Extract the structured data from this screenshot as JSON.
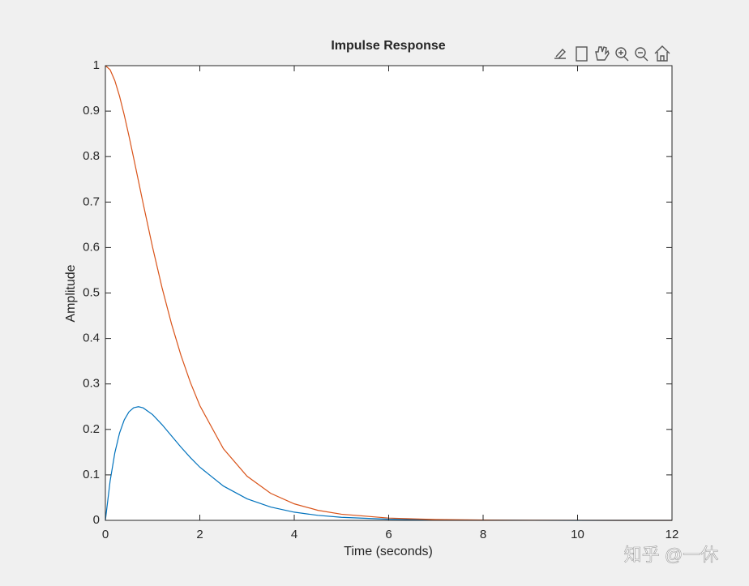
{
  "chart_data": {
    "type": "line",
    "title": "Impulse Response",
    "xlabel": "Time (seconds)",
    "ylabel": "Amplitude",
    "x": [
      0,
      0.1,
      0.2,
      0.3,
      0.4,
      0.5,
      0.6,
      0.7,
      0.8,
      1,
      1.2,
      1.4,
      1.6,
      1.8,
      2,
      2.5,
      3,
      3.5,
      4,
      4.5,
      5,
      6,
      7,
      8,
      9,
      10,
      11,
      12
    ],
    "series": [
      {
        "color": "#0072bd",
        "values": [
          0,
          0.0861,
          0.1484,
          0.192,
          0.221,
          0.2387,
          0.2476,
          0.25,
          0.2474,
          0.2325,
          0.2105,
          0.1858,
          0.1611,
          0.138,
          0.117,
          0.0754,
          0.0473,
          0.0293,
          0.018,
          0.011,
          0.0067,
          0.0025,
          0.0009,
          0.0003,
          0.0001,
          0,
          0,
          0
        ]
      },
      {
        "color": "#d95319",
        "values": [
          1,
          0.991,
          0.9671,
          0.9328,
          0.8913,
          0.8452,
          0.7964,
          0.7466,
          0.6968,
          0.6004,
          0.5117,
          0.4324,
          0.363,
          0.3033,
          0.2524,
          0.1575,
          0.0971,
          0.0595,
          0.0363,
          0.0221,
          0.0135,
          0.005,
          0.0018,
          0.0007,
          0.0002,
          0.0001,
          0,
          0
        ]
      }
    ],
    "xlim": [
      0,
      12
    ],
    "xticks": [
      0,
      2,
      4,
      6,
      8,
      10,
      12
    ],
    "ylim": [
      0,
      1
    ],
    "yticks": [
      0,
      0.1,
      0.2,
      0.3,
      0.4,
      0.5,
      0.6,
      0.7,
      0.8,
      0.9,
      1
    ]
  },
  "watermark": "知乎 @一休"
}
